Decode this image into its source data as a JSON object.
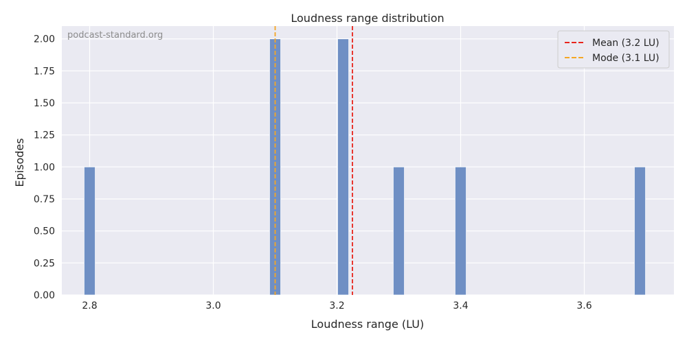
{
  "chart_data": {
    "type": "bar",
    "title": "Loudness range distribution",
    "xlabel": "Loudness range (LU)",
    "ylabel": "Episodes",
    "watermark": "podcast-standard.org",
    "xlim": [
      2.755,
      3.745
    ],
    "ylim": [
      0,
      2.1
    ],
    "x_ticks": [
      2.8,
      3.0,
      3.2,
      3.4,
      3.6
    ],
    "x_tick_labels": [
      "2.8",
      "3.0",
      "3.2",
      "3.4",
      "3.6"
    ],
    "y_ticks": [
      0,
      0.25,
      0.5,
      0.75,
      1.0,
      1.25,
      1.5,
      1.75,
      2.0
    ],
    "y_tick_labels": [
      "0.00",
      "0.25",
      "0.50",
      "0.75",
      "1.00",
      "1.25",
      "1.50",
      "1.75",
      "2.00"
    ],
    "bin_width": 0.018,
    "bars": [
      {
        "x": 2.8,
        "value": 1
      },
      {
        "x": 3.1,
        "value": 2
      },
      {
        "x": 3.21,
        "value": 2
      },
      {
        "x": 3.3,
        "value": 1
      },
      {
        "x": 3.4,
        "value": 1
      },
      {
        "x": 3.69,
        "value": 1
      }
    ],
    "reference_lines": [
      {
        "label": "Mean (3.2 LU)",
        "x": 3.225,
        "color": "#e8231a"
      },
      {
        "label": "Mode (3.1 LU)",
        "x": 3.1,
        "color": "#f5a623"
      }
    ],
    "legend_position": "top-right",
    "grid": true,
    "colors": {
      "bar": "#6f8fc4",
      "plot_background": "#eaeaf2",
      "grid": "#ffffff"
    }
  }
}
